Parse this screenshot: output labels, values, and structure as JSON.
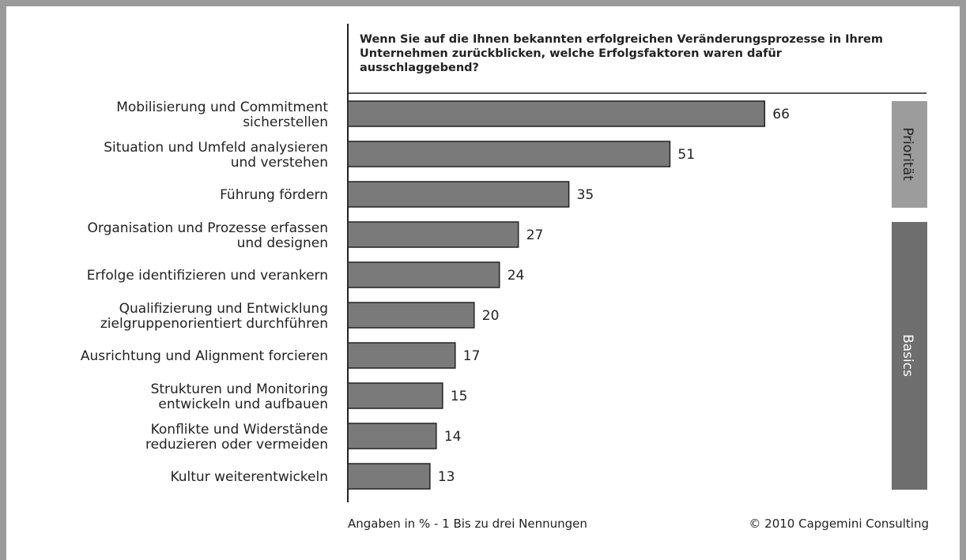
{
  "chart_data": {
    "type": "bar",
    "orientation": "horizontal",
    "title": "Wenn Sie auf die Ihnen bekannten erfolgreichen Veränderungsprozesse in Ihrem\nUnternehmen zurückblicken, welche Erfolgsfaktoren waren dafür\nausschlaggebend?",
    "categories": [
      "Mobilisierung und Commitment\nsicherstellen",
      "Situation und Umfeld analysieren\nund verstehen",
      "Führung fördern",
      "Organisation und Prozesse erfassen\nund designen",
      "Erfolge identifizieren und verankern",
      "Qualifizierung und Entwicklung\nzielgruppenorientiert durchführen",
      "Ausrichtung und Alignment forcieren",
      "Strukturen und Monitoring\nentwickeln und aufbauen",
      "Konflikte und Widerstände\nreduzieren oder vermeiden",
      "Kultur weiterentwickeln"
    ],
    "values": [
      66,
      51,
      35,
      27,
      24,
      20,
      17,
      15,
      14,
      13
    ],
    "color": "#7a7a7a",
    "xlim": [
      0,
      90
    ],
    "groups": [
      "Priorität",
      "Basics"
    ],
    "footnote": "Angaben in % - 1 Bis zu drei Nennungen",
    "source": "© 2010 Capgemini Consulting"
  }
}
